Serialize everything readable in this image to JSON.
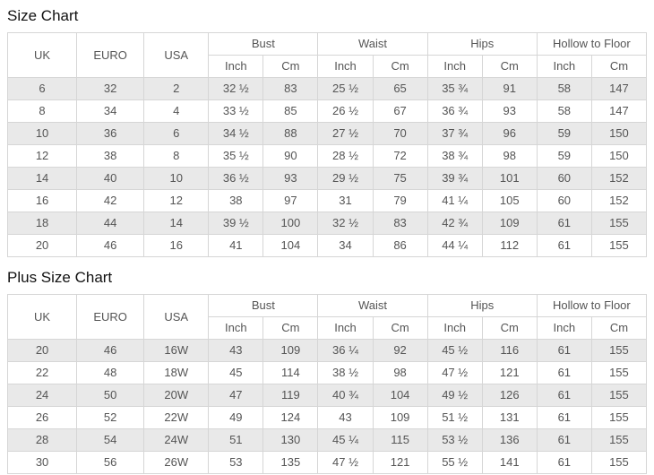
{
  "colors": {
    "stripe_row": "#e9e9e9",
    "border": "#d6d6d6",
    "cell_text": "#555555",
    "title_text": "#111111",
    "background": "#ffffff"
  },
  "tables": [
    {
      "title": "Size Chart",
      "header": {
        "uk": "UK",
        "euro": "EURO",
        "usa": "USA",
        "groups": [
          "Bust",
          "Waist",
          "Hips",
          "Hollow to Floor"
        ],
        "sub": [
          "Inch",
          "Cm",
          "Inch",
          "Cm",
          "Inch",
          "Cm",
          "Inch",
          "Cm"
        ]
      },
      "rows": [
        [
          "6",
          "32",
          "2",
          "32 ½",
          "83",
          "25 ½",
          "65",
          "35 ¾",
          "91",
          "58",
          "147"
        ],
        [
          "8",
          "34",
          "4",
          "33 ½",
          "85",
          "26 ½",
          "67",
          "36 ¾",
          "93",
          "58",
          "147"
        ],
        [
          "10",
          "36",
          "6",
          "34 ½",
          "88",
          "27 ½",
          "70",
          "37 ¾",
          "96",
          "59",
          "150"
        ],
        [
          "12",
          "38",
          "8",
          "35 ½",
          "90",
          "28 ½",
          "72",
          "38 ¾",
          "98",
          "59",
          "150"
        ],
        [
          "14",
          "40",
          "10",
          "36 ½",
          "93",
          "29 ½",
          "75",
          "39 ¾",
          "101",
          "60",
          "152"
        ],
        [
          "16",
          "42",
          "12",
          "38",
          "97",
          "31",
          "79",
          "41 ¼",
          "105",
          "60",
          "152"
        ],
        [
          "18",
          "44",
          "14",
          "39 ½",
          "100",
          "32 ½",
          "83",
          "42 ¾",
          "109",
          "61",
          "155"
        ],
        [
          "20",
          "46",
          "16",
          "41",
          "104",
          "34",
          "86",
          "44 ¼",
          "112",
          "61",
          "155"
        ]
      ]
    },
    {
      "title": "Plus Size Chart",
      "header": {
        "uk": "UK",
        "euro": "EURO",
        "usa": "USA",
        "groups": [
          "Bust",
          "Waist",
          "Hips",
          "Hollow to Floor"
        ],
        "sub": [
          "Inch",
          "Cm",
          "Inch",
          "Cm",
          "Inch",
          "Cm",
          "Inch",
          "Cm"
        ]
      },
      "rows": [
        [
          "20",
          "46",
          "16W",
          "43",
          "109",
          "36 ¼",
          "92",
          "45 ½",
          "116",
          "61",
          "155"
        ],
        [
          "22",
          "48",
          "18W",
          "45",
          "114",
          "38 ½",
          "98",
          "47 ½",
          "121",
          "61",
          "155"
        ],
        [
          "24",
          "50",
          "20W",
          "47",
          "119",
          "40 ¾",
          "104",
          "49 ½",
          "126",
          "61",
          "155"
        ],
        [
          "26",
          "52",
          "22W",
          "49",
          "124",
          "43",
          "109",
          "51 ½",
          "131",
          "61",
          "155"
        ],
        [
          "28",
          "54",
          "24W",
          "51",
          "130",
          "45 ¼",
          "115",
          "53 ½",
          "136",
          "61",
          "155"
        ],
        [
          "30",
          "56",
          "26W",
          "53",
          "135",
          "47 ½",
          "121",
          "55 ½",
          "141",
          "61",
          "155"
        ]
      ]
    }
  ]
}
